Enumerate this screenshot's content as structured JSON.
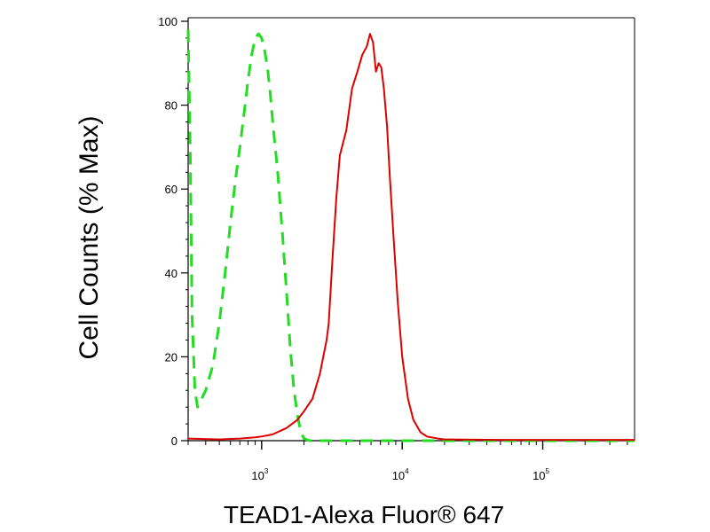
{
  "chart_data": {
    "type": "line",
    "title": "",
    "xlabel": "TEAD1-Alexa Fluor® 647",
    "ylabel": "Cell Counts (% Max)",
    "x_scale": "log",
    "xlim": [
      300,
      450000
    ],
    "ylim": [
      0,
      100
    ],
    "y_ticks": [
      {
        "value": 0,
        "label": "0"
      },
      {
        "value": 20,
        "label": "20"
      },
      {
        "value": 40,
        "label": "40"
      },
      {
        "value": 60,
        "label": "60"
      },
      {
        "value": 80,
        "label": "80"
      },
      {
        "value": 100,
        "label": "100"
      }
    ],
    "x_ticks": [
      {
        "value": 1000,
        "base": "10",
        "exp": "3"
      },
      {
        "value": 10000,
        "base": "10",
        "exp": "4"
      },
      {
        "value": 100000,
        "base": "10",
        "exp": "5"
      }
    ],
    "grid": false,
    "series": [
      {
        "style": "dashed",
        "color": "#22dd22",
        "points": [
          [
            300,
            98
          ],
          [
            310,
            70
          ],
          [
            320,
            30
          ],
          [
            335,
            12
          ],
          [
            350,
            8
          ],
          [
            400,
            12
          ],
          [
            450,
            18
          ],
          [
            500,
            28
          ],
          [
            550,
            40
          ],
          [
            600,
            52
          ],
          [
            650,
            62
          ],
          [
            700,
            70
          ],
          [
            750,
            78
          ],
          [
            800,
            86
          ],
          [
            850,
            92
          ],
          [
            900,
            96
          ],
          [
            950,
            97
          ],
          [
            1000,
            96
          ],
          [
            1050,
            93
          ],
          [
            1100,
            89
          ],
          [
            1150,
            83
          ],
          [
            1200,
            76
          ],
          [
            1300,
            64
          ],
          [
            1400,
            50
          ],
          [
            1500,
            36
          ],
          [
            1600,
            22
          ],
          [
            1700,
            12
          ],
          [
            1800,
            6
          ],
          [
            1900,
            2
          ],
          [
            2000,
            0.5
          ],
          [
            2200,
            0
          ],
          [
            3000,
            0
          ],
          [
            8000,
            0
          ],
          [
            450000,
            0
          ]
        ]
      },
      {
        "style": "solid",
        "color": "#dd0000",
        "points": [
          [
            300,
            0.5
          ],
          [
            500,
            0.3
          ],
          [
            700,
            0.5
          ],
          [
            900,
            0.8
          ],
          [
            1000,
            1
          ],
          [
            1200,
            1.5
          ],
          [
            1500,
            3
          ],
          [
            1800,
            5
          ],
          [
            2000,
            7
          ],
          [
            2300,
            10
          ],
          [
            2600,
            16
          ],
          [
            2900,
            24
          ],
          [
            3000,
            28
          ],
          [
            3200,
            44
          ],
          [
            3400,
            58
          ],
          [
            3600,
            68
          ],
          [
            4000,
            74
          ],
          [
            4400,
            84
          ],
          [
            4800,
            88
          ],
          [
            5200,
            92
          ],
          [
            5600,
            94
          ],
          [
            5900,
            97
          ],
          [
            6200,
            95
          ],
          [
            6500,
            88
          ],
          [
            6800,
            90
          ],
          [
            7100,
            89
          ],
          [
            7400,
            84
          ],
          [
            7800,
            75
          ],
          [
            8200,
            62
          ],
          [
            8700,
            48
          ],
          [
            9300,
            33
          ],
          [
            10000,
            20
          ],
          [
            11000,
            10
          ],
          [
            12000,
            5
          ],
          [
            13500,
            2
          ],
          [
            15000,
            1
          ],
          [
            18000,
            0.5
          ],
          [
            20000,
            0.3
          ],
          [
            50000,
            0.2
          ],
          [
            450000,
            0.2
          ]
        ]
      }
    ]
  }
}
